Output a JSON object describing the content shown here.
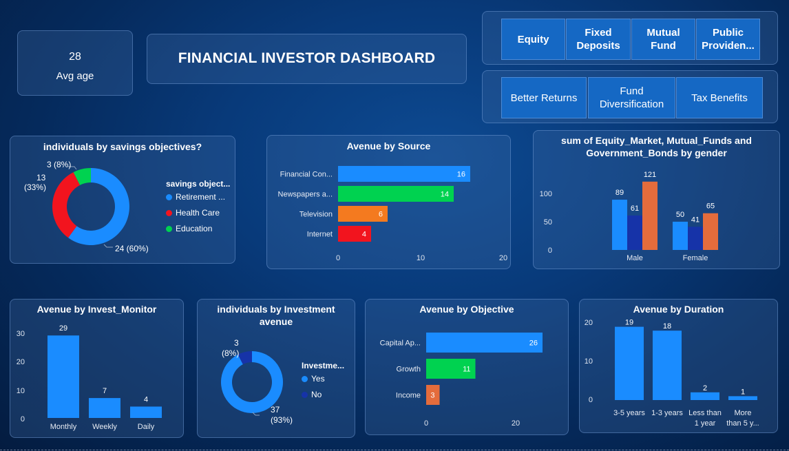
{
  "kpi": {
    "value": "28",
    "label": "Avg age"
  },
  "dashboard_title": "FINANCIAL INVESTOR DASHBOARD",
  "slicer_avenues": [
    "Equity",
    "Fixed Deposits",
    "Mutual Fund",
    "Public Providen..."
  ],
  "slicer_reasons": [
    "Better Returns",
    "Fund Diversification",
    "Tax Benefits"
  ],
  "colors": {
    "blue": "#1a8cff",
    "red": "#f2141e",
    "green": "#00d250",
    "orange": "#f47a1f",
    "dark_blue": "#1633a8",
    "burnt_orange": "#e46c3c"
  },
  "charts": {
    "savings": {
      "title": "individuals by savings objectives?",
      "legend_title": "savings object...",
      "legend": [
        "Retirement ...",
        "Health Care",
        "Education"
      ],
      "labels": [
        "24 (60%)",
        "13",
        "(33%)",
        "3 (8%)"
      ]
    },
    "source": {
      "title": "Avenue by Source",
      "ticks": [
        "0",
        "10",
        "20"
      ]
    },
    "gender": {
      "title_l1": "sum of Equity_Market, Mutual_Funds and",
      "title_l2": "Government_Bonds by gender",
      "ticks": [
        "0",
        "50",
        "100"
      ]
    },
    "monitor": {
      "title": "Avenue by Invest_Monitor",
      "ticks": [
        "0",
        "10",
        "20",
        "30"
      ]
    },
    "invest": {
      "title_l1": "individuals by Investment",
      "title_l2": "avenue",
      "legend_title": "Investme...",
      "legend": [
        "Yes",
        "No"
      ],
      "labels": [
        "3",
        "(8%)",
        "37",
        "(93%)"
      ]
    },
    "objective": {
      "title": "Avenue by Objective",
      "ticks": [
        "0",
        "20"
      ]
    },
    "duration": {
      "title": "Avenue by Duration",
      "ticks": [
        "0",
        "10",
        "20"
      ]
    }
  },
  "chart_data": [
    {
      "type": "pie",
      "title": "individuals by savings objectives?",
      "legend_title": "savings object...",
      "categories": [
        "Retirement ...",
        "Health Care",
        "Education"
      ],
      "values": [
        24,
        13,
        3
      ],
      "percents": [
        60,
        33,
        8
      ]
    },
    {
      "type": "bar",
      "orientation": "horizontal",
      "title": "Avenue by Source",
      "categories": [
        "Financial Con...",
        "Newspapers a...",
        "Television",
        "Internet"
      ],
      "values": [
        16,
        14,
        6,
        4
      ],
      "xlim": [
        0,
        20
      ]
    },
    {
      "type": "bar",
      "title_l1": "sum of Equity_Market, Mutual_Funds and",
      "title_l2": "Government_Bonds by gender",
      "categories": [
        "Male",
        "Female"
      ],
      "series": [
        {
          "values": [
            89,
            50
          ]
        },
        {
          "values": [
            61,
            41
          ]
        },
        {
          "values": [
            121,
            65
          ]
        }
      ],
      "ylim": [
        0,
        130
      ]
    },
    {
      "type": "bar",
      "title": "Avenue by Invest_Monitor",
      "categories": [
        "Monthly",
        "Weekly",
        "Daily"
      ],
      "values": [
        29,
        7,
        4
      ],
      "ylim": [
        0,
        30
      ]
    },
    {
      "type": "pie",
      "title": "individuals by Investment avenue",
      "legend_title": "Investme...",
      "categories": [
        "Yes",
        "No"
      ],
      "values": [
        37,
        3
      ],
      "percents": [
        93,
        8
      ]
    },
    {
      "type": "bar",
      "orientation": "horizontal",
      "title": "Avenue by Objective",
      "categories": [
        "Capital Ap...",
        "Growth",
        "Income"
      ],
      "values": [
        26,
        11,
        3
      ],
      "xlim": [
        0,
        26
      ]
    },
    {
      "type": "bar",
      "title": "Avenue by Duration",
      "categories": [
        "3-5 years",
        "1-3 years",
        "Less than 1 year",
        "More than 5 y..."
      ],
      "category_lines": [
        [
          "3-5 years"
        ],
        [
          "1-3 years"
        ],
        [
          "Less than",
          "1 year"
        ],
        [
          "More",
          "than 5 y..."
        ]
      ],
      "values": [
        19,
        18,
        2,
        1
      ],
      "ylim": [
        0,
        20
      ]
    }
  ]
}
